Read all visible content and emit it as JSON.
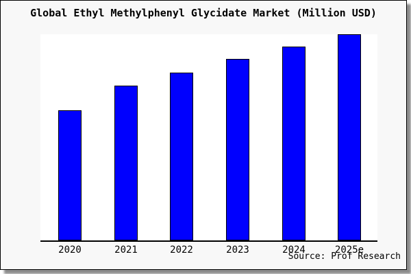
{
  "title": "Global Ethyl Methylphenyl Glycidate Market (Million USD)",
  "source_label": "Source: Prof Research",
  "colors": {
    "bar_fill": "#0000fe",
    "bar_border": "#000000",
    "card_bg": "#f8f8f8",
    "plot_bg": "#ffffff",
    "axis": "#000000",
    "frame_border": "#000000"
  },
  "chart_data": {
    "type": "bar",
    "title": "Global Ethyl Methylphenyl Glycidate Market (Million USD)",
    "categories": [
      "2020",
      "2021",
      "2022",
      "2023",
      "2024",
      "2025e"
    ],
    "values": [
      63,
      75,
      81.5,
      88,
      94,
      100
    ],
    "units": "relative height, % of tallest bar (no numeric y-axis shown in figure)",
    "xlabel": "",
    "ylabel": "",
    "ylim": [
      0,
      100
    ],
    "grid": false,
    "legend": false,
    "annotations": [
      "Source: Prof Research"
    ]
  }
}
